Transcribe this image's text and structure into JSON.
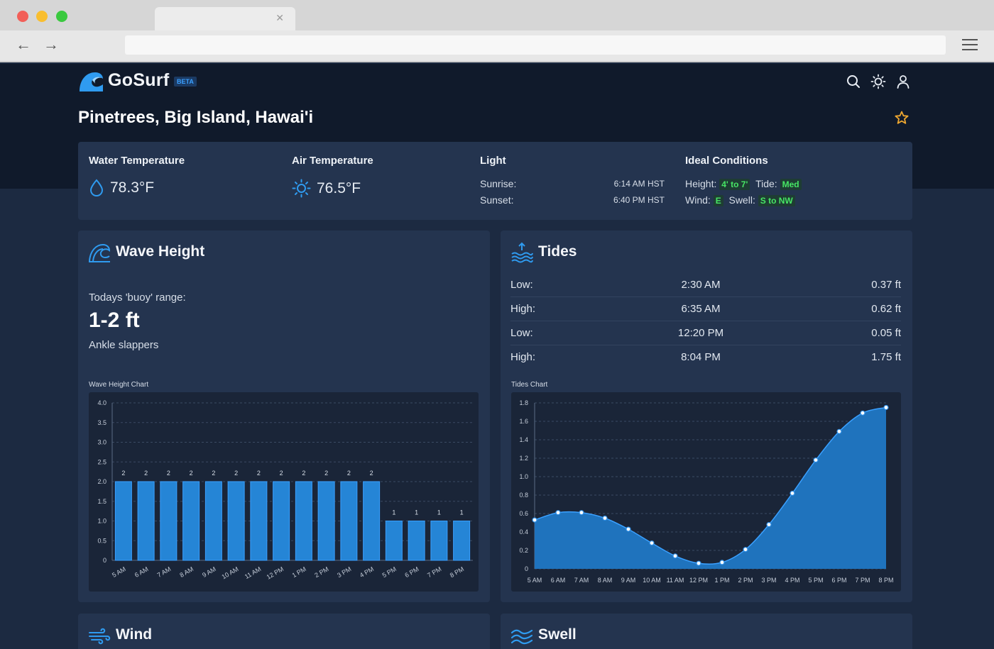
{
  "app": {
    "name": "GoSurf",
    "badge": "BETA"
  },
  "location": "Pinetrees, Big Island, Hawai'i",
  "conditions": {
    "water": {
      "title": "Water Temperature",
      "value": "78.3°F"
    },
    "air": {
      "title": "Air Temperature",
      "value": "76.5°F"
    },
    "light": {
      "title": "Light",
      "sunrise_label": "Sunrise:",
      "sunrise": "6:14 AM HST",
      "sunset_label": "Sunset:",
      "sunset": "6:40 PM HST"
    },
    "ideal": {
      "title": "Ideal Conditions",
      "height_label": "Height:",
      "height": "4' to 7'",
      "tide_label": "Tide:",
      "tide": "Med",
      "wind_label": "Wind:",
      "wind": "E",
      "swell_label": "Swell:",
      "swell": "S to NW"
    }
  },
  "wave": {
    "title": "Wave Height",
    "buoy_label": "Todays 'buoy' range:",
    "buoy_value": "1-2 ft",
    "buoy_desc": "Ankle slappers",
    "chart_title": "Wave Height Chart"
  },
  "tides": {
    "title": "Tides",
    "rows": [
      {
        "type": "Low:",
        "time": "2:30 AM",
        "height": "0.37 ft"
      },
      {
        "type": "High:",
        "time": "6:35 AM",
        "height": "0.62 ft"
      },
      {
        "type": "Low:",
        "time": "12:20 PM",
        "height": "0.05 ft"
      },
      {
        "type": "High:",
        "time": "8:04 PM",
        "height": "1.75 ft"
      }
    ],
    "chart_title": "Tides Chart"
  },
  "wind": {
    "title": "Wind"
  },
  "swell": {
    "title": "Swell"
  },
  "colors": {
    "accent": "#2f8fe6",
    "bar": "#2585d6",
    "green_tag": "#47e665",
    "star": "#f0a830"
  },
  "chart_data": [
    {
      "type": "bar",
      "title": "Wave Height Chart",
      "categories": [
        "5 AM",
        "6 AM",
        "7 AM",
        "8 AM",
        "9 AM",
        "10 AM",
        "11 AM",
        "12 PM",
        "1 PM",
        "2 PM",
        "3 PM",
        "4 PM",
        "5 PM",
        "6 PM",
        "7 PM",
        "8 PM"
      ],
      "values": [
        2,
        2,
        2,
        2,
        2,
        2,
        2,
        2,
        2,
        2,
        2,
        2,
        1,
        1,
        1,
        1
      ],
      "ylim": [
        0,
        4
      ],
      "yticks": [
        "0",
        "0.5",
        "1.0",
        "1.5",
        "2.0",
        "2.5",
        "3.0",
        "3.5",
        "4.0"
      ],
      "grid": true,
      "data_labels": true
    },
    {
      "type": "area",
      "title": "Tides Chart",
      "categories": [
        "5 AM",
        "6 AM",
        "7 AM",
        "8 AM",
        "9 AM",
        "10 AM",
        "11 AM",
        "12 PM",
        "1 PM",
        "2 PM",
        "3 PM",
        "4 PM",
        "5 PM",
        "6 PM",
        "7 PM",
        "8 PM"
      ],
      "values": [
        0.53,
        0.61,
        0.61,
        0.55,
        0.43,
        0.28,
        0.14,
        0.06,
        0.07,
        0.21,
        0.48,
        0.82,
        1.18,
        1.49,
        1.69,
        1.75
      ],
      "ylim": [
        0,
        1.8
      ],
      "yticks": [
        "0",
        "0.2",
        "0.4",
        "0.6",
        "0.8",
        "1.0",
        "1.2",
        "1.4",
        "1.6",
        "1.8"
      ],
      "grid": true
    }
  ]
}
